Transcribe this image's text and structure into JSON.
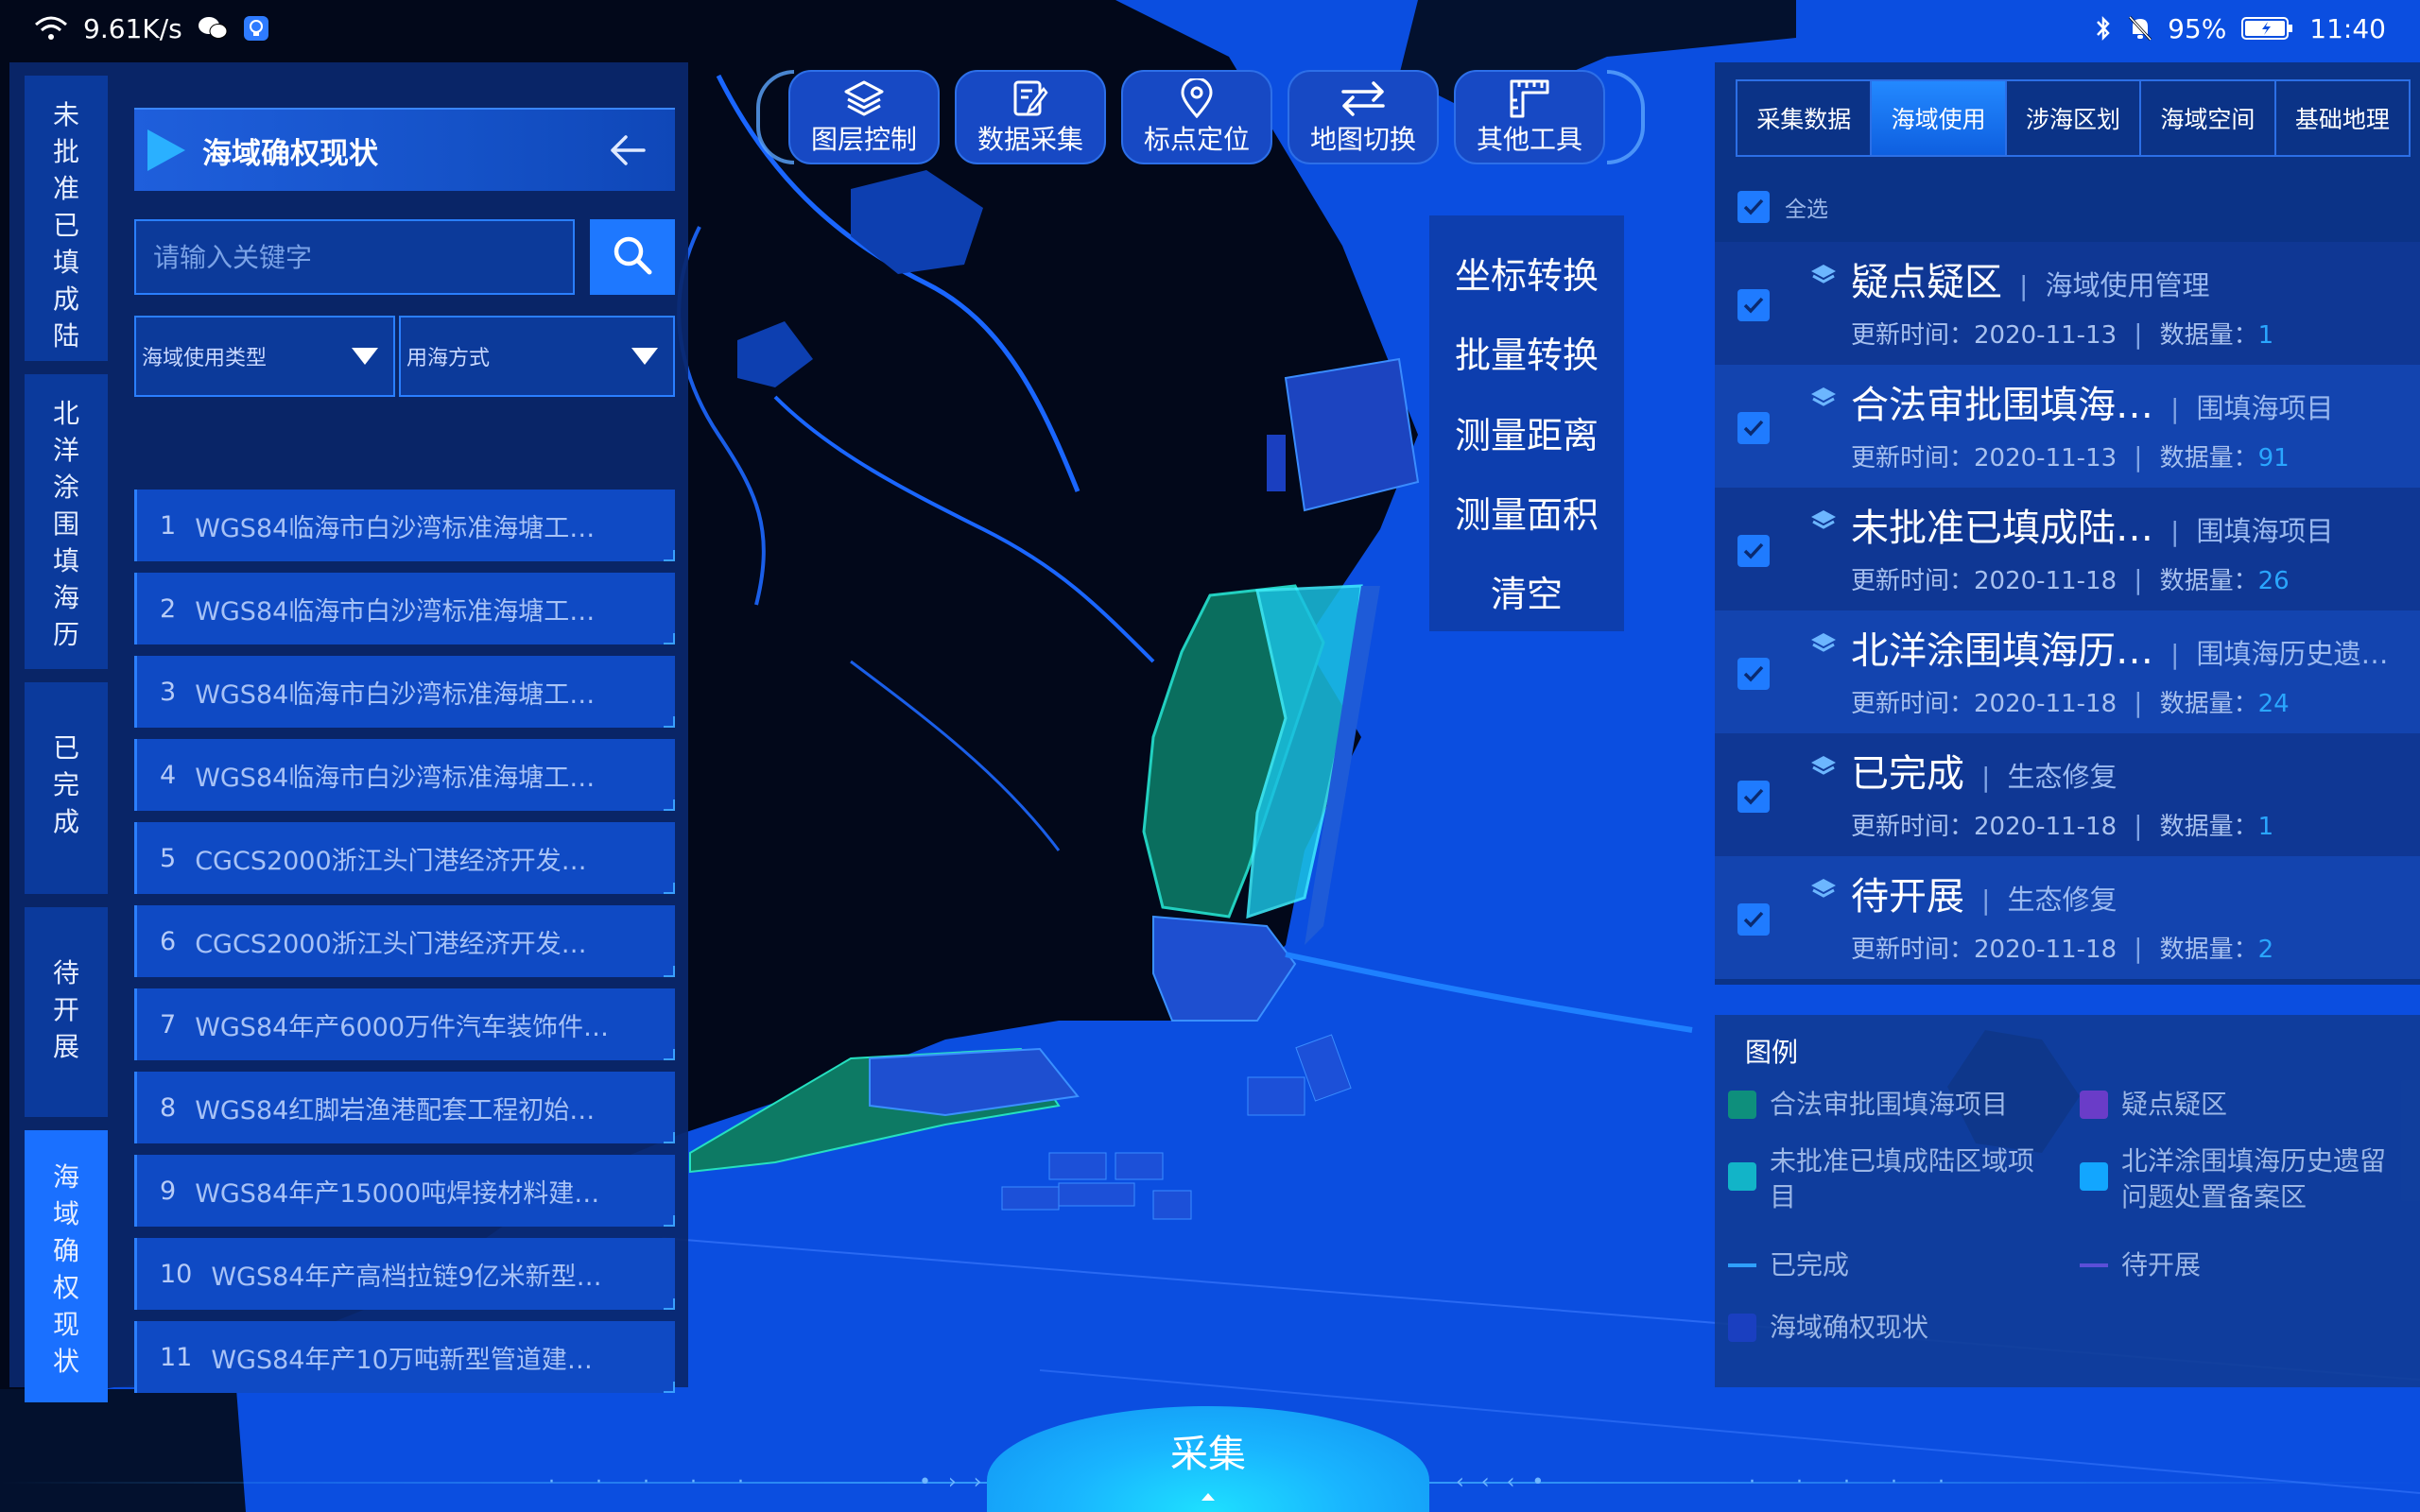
{
  "status": {
    "speed": "9.61K/s",
    "battery": "95%",
    "time": "11:40"
  },
  "left_panel": {
    "vertical_tabs": [
      {
        "label": "未批准已填成陆",
        "active": false
      },
      {
        "label": "北洋涂围填海历",
        "active": false
      },
      {
        "label": "已完成",
        "active": false
      },
      {
        "label": "待开展",
        "active": false
      },
      {
        "label": "海域确权现状",
        "active": true
      }
    ],
    "title": "海域确权现状",
    "search_placeholder": "请输入关键字",
    "filter_type": "海域使用类型",
    "filter_mode": "用海方式",
    "results": [
      {
        "num": "1",
        "text": "WGS84临海市白沙湾标准海塘工…"
      },
      {
        "num": "2",
        "text": "WGS84临海市白沙湾标准海塘工…"
      },
      {
        "num": "3",
        "text": "WGS84临海市白沙湾标准海塘工…"
      },
      {
        "num": "4",
        "text": "WGS84临海市白沙湾标准海塘工…"
      },
      {
        "num": "5",
        "text": "CGCS2000浙江头门港经济开发…"
      },
      {
        "num": "6",
        "text": "CGCS2000浙江头门港经济开发…"
      },
      {
        "num": "7",
        "text": "WGS84年产6000万件汽车装饰件…"
      },
      {
        "num": "8",
        "text": "WGS84红脚岩渔港配套工程初始…"
      },
      {
        "num": "9",
        "text": "WGS84年产15000吨焊接材料建…"
      },
      {
        "num": "10",
        "text": "WGS84年产高档拉链9亿米新型…"
      },
      {
        "num": "11",
        "text": "WGS84年产10万吨新型管道建…"
      }
    ]
  },
  "toolbar": {
    "buttons": [
      {
        "label": "图层控制",
        "icon": "layers-icon"
      },
      {
        "label": "数据采集",
        "icon": "edit-icon"
      },
      {
        "label": "标点定位",
        "icon": "location-pin-icon"
      },
      {
        "label": "地图切换",
        "icon": "swap-arrows-icon"
      },
      {
        "label": "其他工具",
        "icon": "ruler-icon"
      }
    ],
    "dropdown": [
      "坐标转换",
      "批量转换",
      "测量距离",
      "测量面积",
      "清空"
    ]
  },
  "right_panel": {
    "tabs": [
      {
        "label": "采集数据",
        "active": false
      },
      {
        "label": "海域使用",
        "active": true
      },
      {
        "label": "涉海区划",
        "active": false
      },
      {
        "label": "海域空间",
        "active": false
      },
      {
        "label": "基础地理",
        "active": false
      }
    ],
    "select_all": "全选",
    "update_label": "更新时间：",
    "count_label": "数据量：",
    "layers": [
      {
        "name": "疑点疑区",
        "category": "海域使用管理",
        "date": "2020-11-13",
        "count": "1"
      },
      {
        "name": "合法审批围填海…",
        "category": "围填海项目",
        "date": "2020-11-13",
        "count": "91"
      },
      {
        "name": "未批准已填成陆…",
        "category": "围填海项目",
        "date": "2020-11-18",
        "count": "26"
      },
      {
        "name": "北洋涂围填海历…",
        "category": "围填海历史遗…",
        "date": "2020-11-18",
        "count": "24"
      },
      {
        "name": "已完成",
        "category": "生态修复",
        "date": "2020-11-18",
        "count": "1"
      },
      {
        "name": "待开展",
        "category": "生态修复",
        "date": "2020-11-18",
        "count": "2"
      }
    ]
  },
  "legend": {
    "title": "图例",
    "items": [
      {
        "label": "合法审批围填海项目",
        "color": "#0e8f7c",
        "kind": "box"
      },
      {
        "label": "疑点疑区",
        "color": "#6a3cc8",
        "kind": "box"
      },
      {
        "label": "未批准已填成陆区域项目",
        "color": "#12b4c8",
        "kind": "box"
      },
      {
        "label": "北洋涂围填海历史遗留问题处置备案区",
        "color": "#12a6ff",
        "kind": "box"
      },
      {
        "label": "已完成",
        "color": "#2fa0ff",
        "kind": "line"
      },
      {
        "label": "待开展",
        "color": "#5b4fd8",
        "kind": "line"
      },
      {
        "label": "海域确权现状",
        "color": "#1a3fc0",
        "kind": "box"
      }
    ]
  },
  "bottom": {
    "collect_label": "采集"
  }
}
